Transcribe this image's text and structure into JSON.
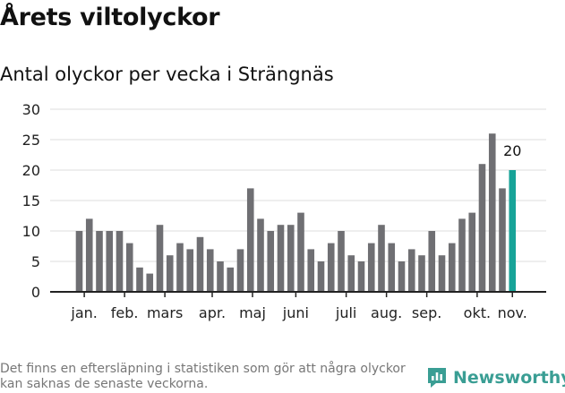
{
  "header": {
    "title": "Årets viltolyckor",
    "subtitle": "Antal olyckor per vecka i Strängnäs"
  },
  "footer": {
    "note": "Det finns en eftersläpning i statistiken som gör att några olyckor kan saknas de senaste veckorna.",
    "brand": "Newsworthy"
  },
  "colors": {
    "bar": "#6f6f73",
    "highlight": "#17a398",
    "grid": "#dddddd",
    "axis": "#222222",
    "brand": "#3a9e94"
  },
  "chart_data": {
    "type": "bar",
    "ylim": [
      0,
      30
    ],
    "yticks": [
      0,
      5,
      10,
      15,
      20,
      25,
      30
    ],
    "grid": true,
    "values": [
      10,
      12,
      10,
      10,
      10,
      8,
      4,
      3,
      11,
      6,
      8,
      7,
      9,
      7,
      5,
      4,
      7,
      17,
      12,
      10,
      11,
      11,
      13,
      7,
      5,
      8,
      10,
      6,
      5,
      8,
      11,
      8,
      5,
      7,
      6,
      10,
      6,
      8,
      12,
      13,
      21,
      26,
      17,
      20
    ],
    "x_tick_labels": [
      {
        "label": "jan.",
        "bar_index": 0.5
      },
      {
        "label": "feb.",
        "bar_index": 4.5
      },
      {
        "label": "mars",
        "bar_index": 8.5
      },
      {
        "label": "apr.",
        "bar_index": 13.2
      },
      {
        "label": "maj",
        "bar_index": 17.2
      },
      {
        "label": "juni",
        "bar_index": 21.5
      },
      {
        "label": "juli",
        "bar_index": 26.5
      },
      {
        "label": "aug.",
        "bar_index": 30.5
      },
      {
        "label": "sep.",
        "bar_index": 34.5
      },
      {
        "label": "okt.",
        "bar_index": 39.5
      },
      {
        "label": "nov.",
        "bar_index": 43.0
      }
    ],
    "highlight_index": 43,
    "highlight_label": "20"
  }
}
